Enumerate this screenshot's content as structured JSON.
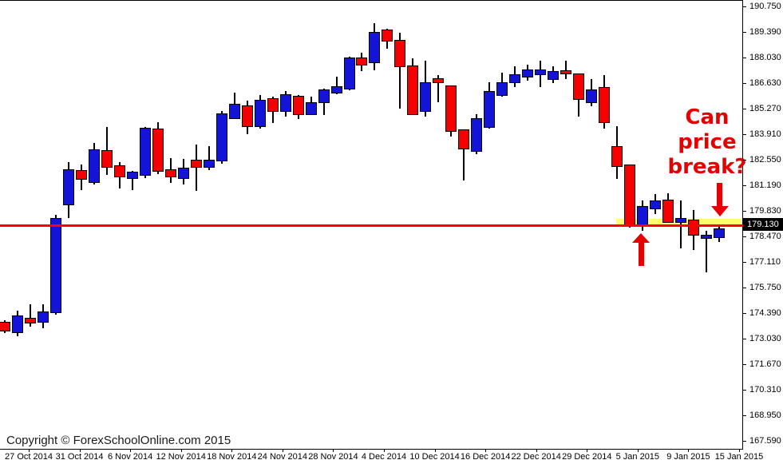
{
  "watermark": "Copyright © ForexSchoolOnline.com 2015",
  "price_tag": "179.130",
  "annotation": {
    "text": "Can price break?",
    "line1": "Can",
    "line2": "price",
    "line3": "break?",
    "color": "#e60000"
  },
  "colors": {
    "bull": "#1414d8",
    "bear": "#f40000",
    "support_line": "#ff0000",
    "highlight_zone": "#ffff6e",
    "price_tag_bg": "#000000"
  },
  "chart_data": {
    "type": "candlestick",
    "title": "",
    "xlabel": "",
    "ylabel": "",
    "grid": false,
    "y_axis": {
      "max": 190.75,
      "min": 167.59
    },
    "y_tick_labels": [
      "190.750",
      "189.390",
      "188.030",
      "186.630",
      "185.270",
      "183.910",
      "182.550",
      "181.190",
      "179.830",
      "178.470",
      "177.110",
      "175.750",
      "174.390",
      "173.030",
      "171.670",
      "170.310",
      "168.950",
      "167.590"
    ],
    "x_tick_labels": [
      "27 Oct 2014",
      "31 Oct 2014",
      "6 Nov 2014",
      "12 Nov 2014",
      "18 Nov 2014",
      "24 Nov 2014",
      "28 Nov 2014",
      "4 Dec 2014",
      "10 Dec 2014",
      "16 Dec 2014",
      "22 Dec 2014",
      "29 Dec 2014",
      "5 Jan 2015",
      "9 Jan 2015",
      "15 Jan 2015"
    ],
    "support_line": {
      "price": 179.13
    },
    "highlight_zone": {
      "price_top": 179.45,
      "price_bottom": 179.05
    },
    "candles": [
      {
        "o": 173.93,
        "h": 174.06,
        "l": 173.38,
        "c": 173.51
      },
      {
        "o": 173.42,
        "h": 174.57,
        "l": 173.21,
        "c": 174.27
      },
      {
        "o": 174.15,
        "h": 174.91,
        "l": 173.72,
        "c": 173.93
      },
      {
        "o": 173.97,
        "h": 174.91,
        "l": 173.64,
        "c": 174.49
      },
      {
        "o": 174.49,
        "h": 179.68,
        "l": 174.36,
        "c": 179.47
      },
      {
        "o": 180.23,
        "h": 182.49,
        "l": 179.51,
        "c": 182.06
      },
      {
        "o": 182.02,
        "h": 182.36,
        "l": 181.0,
        "c": 181.6
      },
      {
        "o": 181.43,
        "h": 183.51,
        "l": 181.3,
        "c": 183.13
      },
      {
        "o": 183.09,
        "h": 184.36,
        "l": 181.81,
        "c": 182.24
      },
      {
        "o": 182.28,
        "h": 182.49,
        "l": 181.09,
        "c": 181.72
      },
      {
        "o": 181.64,
        "h": 182.02,
        "l": 181.0,
        "c": 181.94
      },
      {
        "o": 181.81,
        "h": 184.36,
        "l": 181.64,
        "c": 184.28
      },
      {
        "o": 184.24,
        "h": 184.62,
        "l": 181.85,
        "c": 182.02
      },
      {
        "o": 182.06,
        "h": 182.7,
        "l": 181.38,
        "c": 181.72
      },
      {
        "o": 181.64,
        "h": 182.66,
        "l": 181.3,
        "c": 182.15
      },
      {
        "o": 182.58,
        "h": 183.43,
        "l": 180.96,
        "c": 182.24
      },
      {
        "o": 182.24,
        "h": 183.34,
        "l": 182.06,
        "c": 182.58
      },
      {
        "o": 182.58,
        "h": 185.22,
        "l": 182.41,
        "c": 185.05
      },
      {
        "o": 184.83,
        "h": 186.19,
        "l": 184.79,
        "c": 185.56
      },
      {
        "o": 185.47,
        "h": 185.77,
        "l": 183.98,
        "c": 184.41
      },
      {
        "o": 184.41,
        "h": 186.07,
        "l": 184.28,
        "c": 185.77
      },
      {
        "o": 185.85,
        "h": 185.98,
        "l": 184.58,
        "c": 185.22
      },
      {
        "o": 185.22,
        "h": 186.28,
        "l": 184.92,
        "c": 186.07
      },
      {
        "o": 185.98,
        "h": 186.07,
        "l": 184.79,
        "c": 185.05
      },
      {
        "o": 185.05,
        "h": 185.98,
        "l": 185.0,
        "c": 185.64
      },
      {
        "o": 185.68,
        "h": 186.41,
        "l": 185.0,
        "c": 186.32
      },
      {
        "o": 186.19,
        "h": 187.05,
        "l": 186.11,
        "c": 186.49
      },
      {
        "o": 186.41,
        "h": 188.11,
        "l": 186.32,
        "c": 188.03
      },
      {
        "o": 188.03,
        "h": 188.32,
        "l": 187.34,
        "c": 187.68
      },
      {
        "o": 187.81,
        "h": 189.9,
        "l": 187.39,
        "c": 189.39
      },
      {
        "o": 189.52,
        "h": 189.6,
        "l": 188.54,
        "c": 188.96
      },
      {
        "o": 188.96,
        "h": 189.39,
        "l": 185.34,
        "c": 187.6
      },
      {
        "o": 187.6,
        "h": 188.03,
        "l": 185.05,
        "c": 185.05
      },
      {
        "o": 185.22,
        "h": 187.9,
        "l": 184.92,
        "c": 186.71
      },
      {
        "o": 186.92,
        "h": 187.13,
        "l": 185.68,
        "c": 186.75
      },
      {
        "o": 186.54,
        "h": 186.54,
        "l": 183.85,
        "c": 184.15
      },
      {
        "o": 184.19,
        "h": 184.19,
        "l": 181.51,
        "c": 183.22
      },
      {
        "o": 183.09,
        "h": 185.05,
        "l": 182.92,
        "c": 184.79
      },
      {
        "o": 184.36,
        "h": 186.75,
        "l": 184.28,
        "c": 186.24
      },
      {
        "o": 186.07,
        "h": 187.26,
        "l": 185.98,
        "c": 186.71
      },
      {
        "o": 186.75,
        "h": 187.6,
        "l": 186.49,
        "c": 187.13
      },
      {
        "o": 187.05,
        "h": 187.68,
        "l": 186.83,
        "c": 187.39
      },
      {
        "o": 187.17,
        "h": 187.9,
        "l": 186.49,
        "c": 187.39
      },
      {
        "o": 186.92,
        "h": 187.6,
        "l": 186.71,
        "c": 187.3
      },
      {
        "o": 187.34,
        "h": 187.9,
        "l": 186.92,
        "c": 187.22
      },
      {
        "o": 187.17,
        "h": 187.17,
        "l": 184.92,
        "c": 185.85
      },
      {
        "o": 185.68,
        "h": 186.92,
        "l": 185.47,
        "c": 186.32
      },
      {
        "o": 186.45,
        "h": 187.13,
        "l": 184.28,
        "c": 184.62
      },
      {
        "o": 183.3,
        "h": 184.41,
        "l": 181.6,
        "c": 182.28
      },
      {
        "o": 182.32,
        "h": 182.32,
        "l": 179.0,
        "c": 179.17
      },
      {
        "o": 179.17,
        "h": 180.45,
        "l": 178.83,
        "c": 180.11
      },
      {
        "o": 180.02,
        "h": 180.79,
        "l": 179.72,
        "c": 180.4
      },
      {
        "o": 180.45,
        "h": 180.83,
        "l": 179.26,
        "c": 179.3
      },
      {
        "o": 179.3,
        "h": 180.45,
        "l": 177.89,
        "c": 179.47
      },
      {
        "o": 179.38,
        "h": 179.94,
        "l": 177.81,
        "c": 178.62
      },
      {
        "o": 178.45,
        "h": 178.83,
        "l": 176.62,
        "c": 178.57
      },
      {
        "o": 178.49,
        "h": 179.17,
        "l": 178.23,
        "c": 178.91
      }
    ]
  }
}
